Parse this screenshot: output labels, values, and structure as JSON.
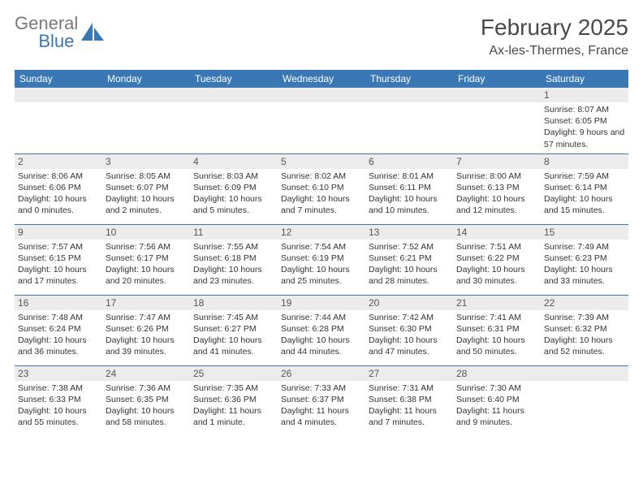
{
  "logo": {
    "word1": "General",
    "word2": "Blue"
  },
  "title": {
    "month": "February 2025",
    "location": "Ax-les-Thermes, France"
  },
  "day_headers": [
    "Sunday",
    "Monday",
    "Tuesday",
    "Wednesday",
    "Thursday",
    "Friday",
    "Saturday"
  ],
  "colors": {
    "header_bg": "#3a78b5",
    "header_fg": "#ffffff",
    "daynum_bg": "#ececec",
    "rule": "#3a78b5"
  },
  "weeks": [
    [
      {
        "n": "",
        "txt": ""
      },
      {
        "n": "",
        "txt": ""
      },
      {
        "n": "",
        "txt": ""
      },
      {
        "n": "",
        "txt": ""
      },
      {
        "n": "",
        "txt": ""
      },
      {
        "n": "",
        "txt": ""
      },
      {
        "n": "1",
        "txt": "Sunrise: 8:07 AM\nSunset: 6:05 PM\nDaylight: 9 hours and 57 minutes."
      }
    ],
    [
      {
        "n": "2",
        "txt": "Sunrise: 8:06 AM\nSunset: 6:06 PM\nDaylight: 10 hours and 0 minutes."
      },
      {
        "n": "3",
        "txt": "Sunrise: 8:05 AM\nSunset: 6:07 PM\nDaylight: 10 hours and 2 minutes."
      },
      {
        "n": "4",
        "txt": "Sunrise: 8:03 AM\nSunset: 6:09 PM\nDaylight: 10 hours and 5 minutes."
      },
      {
        "n": "5",
        "txt": "Sunrise: 8:02 AM\nSunset: 6:10 PM\nDaylight: 10 hours and 7 minutes."
      },
      {
        "n": "6",
        "txt": "Sunrise: 8:01 AM\nSunset: 6:11 PM\nDaylight: 10 hours and 10 minutes."
      },
      {
        "n": "7",
        "txt": "Sunrise: 8:00 AM\nSunset: 6:13 PM\nDaylight: 10 hours and 12 minutes."
      },
      {
        "n": "8",
        "txt": "Sunrise: 7:59 AM\nSunset: 6:14 PM\nDaylight: 10 hours and 15 minutes."
      }
    ],
    [
      {
        "n": "9",
        "txt": "Sunrise: 7:57 AM\nSunset: 6:15 PM\nDaylight: 10 hours and 17 minutes."
      },
      {
        "n": "10",
        "txt": "Sunrise: 7:56 AM\nSunset: 6:17 PM\nDaylight: 10 hours and 20 minutes."
      },
      {
        "n": "11",
        "txt": "Sunrise: 7:55 AM\nSunset: 6:18 PM\nDaylight: 10 hours and 23 minutes."
      },
      {
        "n": "12",
        "txt": "Sunrise: 7:54 AM\nSunset: 6:19 PM\nDaylight: 10 hours and 25 minutes."
      },
      {
        "n": "13",
        "txt": "Sunrise: 7:52 AM\nSunset: 6:21 PM\nDaylight: 10 hours and 28 minutes."
      },
      {
        "n": "14",
        "txt": "Sunrise: 7:51 AM\nSunset: 6:22 PM\nDaylight: 10 hours and 30 minutes."
      },
      {
        "n": "15",
        "txt": "Sunrise: 7:49 AM\nSunset: 6:23 PM\nDaylight: 10 hours and 33 minutes."
      }
    ],
    [
      {
        "n": "16",
        "txt": "Sunrise: 7:48 AM\nSunset: 6:24 PM\nDaylight: 10 hours and 36 minutes."
      },
      {
        "n": "17",
        "txt": "Sunrise: 7:47 AM\nSunset: 6:26 PM\nDaylight: 10 hours and 39 minutes."
      },
      {
        "n": "18",
        "txt": "Sunrise: 7:45 AM\nSunset: 6:27 PM\nDaylight: 10 hours and 41 minutes."
      },
      {
        "n": "19",
        "txt": "Sunrise: 7:44 AM\nSunset: 6:28 PM\nDaylight: 10 hours and 44 minutes."
      },
      {
        "n": "20",
        "txt": "Sunrise: 7:42 AM\nSunset: 6:30 PM\nDaylight: 10 hours and 47 minutes."
      },
      {
        "n": "21",
        "txt": "Sunrise: 7:41 AM\nSunset: 6:31 PM\nDaylight: 10 hours and 50 minutes."
      },
      {
        "n": "22",
        "txt": "Sunrise: 7:39 AM\nSunset: 6:32 PM\nDaylight: 10 hours and 52 minutes."
      }
    ],
    [
      {
        "n": "23",
        "txt": "Sunrise: 7:38 AM\nSunset: 6:33 PM\nDaylight: 10 hours and 55 minutes."
      },
      {
        "n": "24",
        "txt": "Sunrise: 7:36 AM\nSunset: 6:35 PM\nDaylight: 10 hours and 58 minutes."
      },
      {
        "n": "25",
        "txt": "Sunrise: 7:35 AM\nSunset: 6:36 PM\nDaylight: 11 hours and 1 minute."
      },
      {
        "n": "26",
        "txt": "Sunrise: 7:33 AM\nSunset: 6:37 PM\nDaylight: 11 hours and 4 minutes."
      },
      {
        "n": "27",
        "txt": "Sunrise: 7:31 AM\nSunset: 6:38 PM\nDaylight: 11 hours and 7 minutes."
      },
      {
        "n": "28",
        "txt": "Sunrise: 7:30 AM\nSunset: 6:40 PM\nDaylight: 11 hours and 9 minutes."
      },
      {
        "n": "",
        "txt": ""
      }
    ]
  ]
}
